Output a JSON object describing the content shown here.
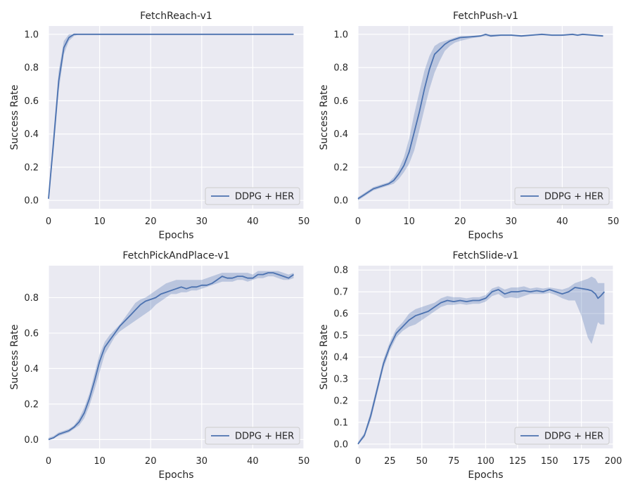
{
  "chart_data": [
    {
      "type": "line",
      "title": "FetchReach-v1",
      "xlabel": "Epochs",
      "ylabel": "Success Rate",
      "xlim": [
        0,
        50
      ],
      "ylim": [
        -0.05,
        1.05
      ],
      "xticks": [
        0,
        10,
        20,
        30,
        40,
        50
      ],
      "yticks": [
        0.0,
        0.2,
        0.4,
        0.6,
        0.8,
        1.0
      ],
      "ytick_labels": [
        "0.0",
        "0.2",
        "0.4",
        "0.6",
        "0.8",
        "1.0"
      ],
      "grid": true,
      "legend": {
        "position": "lower-right",
        "entries": [
          "DDPG + HER"
        ]
      },
      "series": [
        {
          "name": "DDPG + HER",
          "color": "#4c72b0",
          "x": [
            0,
            1,
            2,
            3,
            4,
            5,
            6,
            8,
            10,
            15,
            20,
            25,
            30,
            35,
            40,
            45,
            48
          ],
          "y": [
            0.01,
            0.36,
            0.72,
            0.92,
            0.98,
            1.0,
            1.0,
            1.0,
            1.0,
            1.0,
            1.0,
            1.0,
            1.0,
            1.0,
            1.0,
            1.0,
            1.0
          ],
          "lower": [
            0.0,
            0.3,
            0.66,
            0.88,
            0.96,
            0.99,
            1.0,
            1.0,
            1.0,
            1.0,
            1.0,
            1.0,
            1.0,
            1.0,
            1.0,
            1.0,
            1.0
          ],
          "upper": [
            0.02,
            0.42,
            0.78,
            0.96,
            1.0,
            1.0,
            1.0,
            1.0,
            1.0,
            1.0,
            1.0,
            1.0,
            1.0,
            1.0,
            1.0,
            1.0,
            1.0
          ]
        }
      ]
    },
    {
      "type": "line",
      "title": "FetchPush-v1",
      "xlabel": "Epochs",
      "ylabel": "Success Rate",
      "xlim": [
        0,
        50
      ],
      "ylim": [
        -0.05,
        1.05
      ],
      "xticks": [
        0,
        10,
        20,
        30,
        40,
        50
      ],
      "yticks": [
        0.0,
        0.2,
        0.4,
        0.6,
        0.8,
        1.0
      ],
      "ytick_labels": [
        "0.0",
        "0.2",
        "0.4",
        "0.6",
        "0.8",
        "1.0"
      ],
      "grid": true,
      "legend": {
        "position": "lower-right",
        "entries": [
          "DDPG + HER"
        ]
      },
      "series": [
        {
          "name": "DDPG + HER",
          "color": "#4c72b0",
          "x": [
            0,
            1,
            2,
            3,
            4,
            5,
            6,
            7,
            8,
            9,
            10,
            11,
            12,
            13,
            14,
            15,
            16,
            17,
            18,
            19,
            20,
            22,
            24,
            25,
            26,
            28,
            30,
            32,
            34,
            36,
            38,
            40,
            42,
            43,
            44,
            46,
            48
          ],
          "y": [
            0.01,
            0.03,
            0.05,
            0.07,
            0.08,
            0.09,
            0.1,
            0.12,
            0.16,
            0.21,
            0.29,
            0.41,
            0.53,
            0.67,
            0.79,
            0.88,
            0.91,
            0.94,
            0.96,
            0.97,
            0.98,
            0.985,
            0.99,
            1.0,
            0.99,
            0.995,
            0.995,
            0.99,
            0.995,
            1.0,
            0.995,
            0.995,
            1.0,
            0.995,
            1.0,
            0.995,
            0.99
          ],
          "lower": [
            0.0,
            0.02,
            0.04,
            0.06,
            0.07,
            0.08,
            0.09,
            0.1,
            0.13,
            0.17,
            0.22,
            0.3,
            0.42,
            0.55,
            0.67,
            0.77,
            0.84,
            0.9,
            0.93,
            0.95,
            0.96,
            0.975,
            0.985,
            0.99,
            0.985,
            0.99,
            0.99,
            0.985,
            0.99,
            0.995,
            0.99,
            0.99,
            0.995,
            0.99,
            0.995,
            0.99,
            0.985
          ],
          "upper": [
            0.02,
            0.04,
            0.06,
            0.08,
            0.09,
            0.1,
            0.11,
            0.14,
            0.19,
            0.26,
            0.37,
            0.52,
            0.65,
            0.78,
            0.87,
            0.93,
            0.95,
            0.96,
            0.97,
            0.98,
            0.99,
            0.99,
            0.995,
            1.0,
            1.0,
            1.0,
            1.0,
            0.995,
            1.0,
            1.0,
            1.0,
            1.0,
            1.0,
            1.0,
            1.0,
            1.0,
            0.995
          ]
        }
      ]
    },
    {
      "type": "line",
      "title": "FetchPickAndPlace-v1",
      "xlabel": "Epochs",
      "ylabel": "Success Rate",
      "xlim": [
        0,
        50
      ],
      "ylim": [
        -0.05,
        0.98
      ],
      "xticks": [
        0,
        10,
        20,
        30,
        40,
        50
      ],
      "yticks": [
        0.0,
        0.2,
        0.4,
        0.6,
        0.8
      ],
      "ytick_labels": [
        "0.0",
        "0.2",
        "0.4",
        "0.6",
        "0.8"
      ],
      "grid": true,
      "legend": {
        "position": "lower-right",
        "entries": [
          "DDPG + HER"
        ]
      },
      "series": [
        {
          "name": "DDPG + HER",
          "color": "#4c72b0",
          "x": [
            0,
            1,
            2,
            3,
            4,
            5,
            6,
            7,
            8,
            9,
            10,
            11,
            12,
            13,
            14,
            15,
            16,
            17,
            18,
            19,
            20,
            21,
            22,
            23,
            24,
            25,
            26,
            27,
            28,
            29,
            30,
            31,
            32,
            33,
            34,
            35,
            36,
            37,
            38,
            39,
            40,
            41,
            42,
            43,
            44,
            45,
            46,
            47,
            48
          ],
          "y": [
            0.0,
            0.01,
            0.03,
            0.04,
            0.05,
            0.07,
            0.1,
            0.15,
            0.23,
            0.33,
            0.44,
            0.52,
            0.56,
            0.6,
            0.64,
            0.67,
            0.7,
            0.73,
            0.76,
            0.78,
            0.79,
            0.8,
            0.82,
            0.83,
            0.84,
            0.85,
            0.86,
            0.85,
            0.86,
            0.86,
            0.87,
            0.87,
            0.88,
            0.9,
            0.92,
            0.91,
            0.91,
            0.92,
            0.92,
            0.91,
            0.91,
            0.93,
            0.93,
            0.94,
            0.94,
            0.93,
            0.92,
            0.91,
            0.93
          ],
          "lower": [
            0.0,
            0.01,
            0.02,
            0.03,
            0.04,
            0.06,
            0.08,
            0.12,
            0.19,
            0.28,
            0.38,
            0.48,
            0.53,
            0.58,
            0.61,
            0.63,
            0.65,
            0.67,
            0.69,
            0.71,
            0.73,
            0.76,
            0.78,
            0.8,
            0.82,
            0.82,
            0.83,
            0.83,
            0.84,
            0.84,
            0.85,
            0.86,
            0.87,
            0.88,
            0.89,
            0.89,
            0.89,
            0.9,
            0.9,
            0.89,
            0.9,
            0.91,
            0.91,
            0.92,
            0.92,
            0.91,
            0.9,
            0.9,
            0.91
          ],
          "upper": [
            0.01,
            0.02,
            0.04,
            0.05,
            0.06,
            0.08,
            0.12,
            0.18,
            0.26,
            0.37,
            0.48,
            0.55,
            0.59,
            0.62,
            0.65,
            0.69,
            0.73,
            0.77,
            0.79,
            0.8,
            0.82,
            0.84,
            0.86,
            0.88,
            0.89,
            0.9,
            0.9,
            0.9,
            0.9,
            0.9,
            0.9,
            0.91,
            0.92,
            0.93,
            0.94,
            0.94,
            0.94,
            0.94,
            0.94,
            0.94,
            0.93,
            0.95,
            0.95,
            0.95,
            0.95,
            0.95,
            0.94,
            0.93,
            0.94
          ]
        }
      ]
    },
    {
      "type": "line",
      "title": "FetchSlide-v1",
      "xlabel": "Epochs",
      "ylabel": "Success Rate",
      "xlim": [
        0,
        200
      ],
      "ylim": [
        -0.02,
        0.82
      ],
      "xticks": [
        0,
        25,
        50,
        75,
        100,
        125,
        150,
        175,
        200
      ],
      "yticks": [
        0.0,
        0.1,
        0.2,
        0.3,
        0.4,
        0.5,
        0.6,
        0.7,
        0.8
      ],
      "ytick_labels": [
        "0.0",
        "0.1",
        "0.2",
        "0.3",
        "0.4",
        "0.5",
        "0.6",
        "0.7",
        "0.8"
      ],
      "grid": true,
      "legend": {
        "position": "lower-right",
        "entries": [
          "DDPG + HER"
        ]
      },
      "series": [
        {
          "name": "DDPG + HER",
          "color": "#4c72b0",
          "x": [
            0,
            5,
            10,
            15,
            20,
            25,
            30,
            35,
            40,
            45,
            50,
            55,
            60,
            65,
            70,
            75,
            80,
            85,
            90,
            95,
            100,
            105,
            110,
            115,
            120,
            125,
            130,
            135,
            140,
            145,
            150,
            155,
            160,
            165,
            170,
            175,
            180,
            183,
            186,
            188,
            190,
            193
          ],
          "y": [
            0.0,
            0.04,
            0.13,
            0.25,
            0.37,
            0.45,
            0.51,
            0.54,
            0.57,
            0.59,
            0.6,
            0.61,
            0.63,
            0.65,
            0.66,
            0.655,
            0.66,
            0.655,
            0.66,
            0.66,
            0.67,
            0.7,
            0.71,
            0.69,
            0.7,
            0.7,
            0.705,
            0.7,
            0.705,
            0.7,
            0.71,
            0.7,
            0.69,
            0.7,
            0.72,
            0.715,
            0.71,
            0.705,
            0.69,
            0.67,
            0.68,
            0.7
          ],
          "lower": [
            0.0,
            0.03,
            0.11,
            0.23,
            0.35,
            0.43,
            0.49,
            0.52,
            0.54,
            0.55,
            0.57,
            0.59,
            0.61,
            0.63,
            0.64,
            0.64,
            0.645,
            0.64,
            0.645,
            0.645,
            0.655,
            0.68,
            0.69,
            0.67,
            0.675,
            0.67,
            0.68,
            0.69,
            0.69,
            0.69,
            0.695,
            0.685,
            0.67,
            0.66,
            0.66,
            0.59,
            0.49,
            0.46,
            0.52,
            0.56,
            0.55,
            0.55
          ],
          "upper": [
            0.01,
            0.05,
            0.15,
            0.27,
            0.39,
            0.47,
            0.53,
            0.56,
            0.6,
            0.62,
            0.63,
            0.64,
            0.65,
            0.67,
            0.68,
            0.675,
            0.675,
            0.67,
            0.675,
            0.675,
            0.685,
            0.715,
            0.725,
            0.71,
            0.72,
            0.72,
            0.725,
            0.715,
            0.72,
            0.715,
            0.72,
            0.715,
            0.71,
            0.72,
            0.74,
            0.75,
            0.76,
            0.77,
            0.76,
            0.74,
            0.74,
            0.74
          ]
        }
      ]
    }
  ]
}
